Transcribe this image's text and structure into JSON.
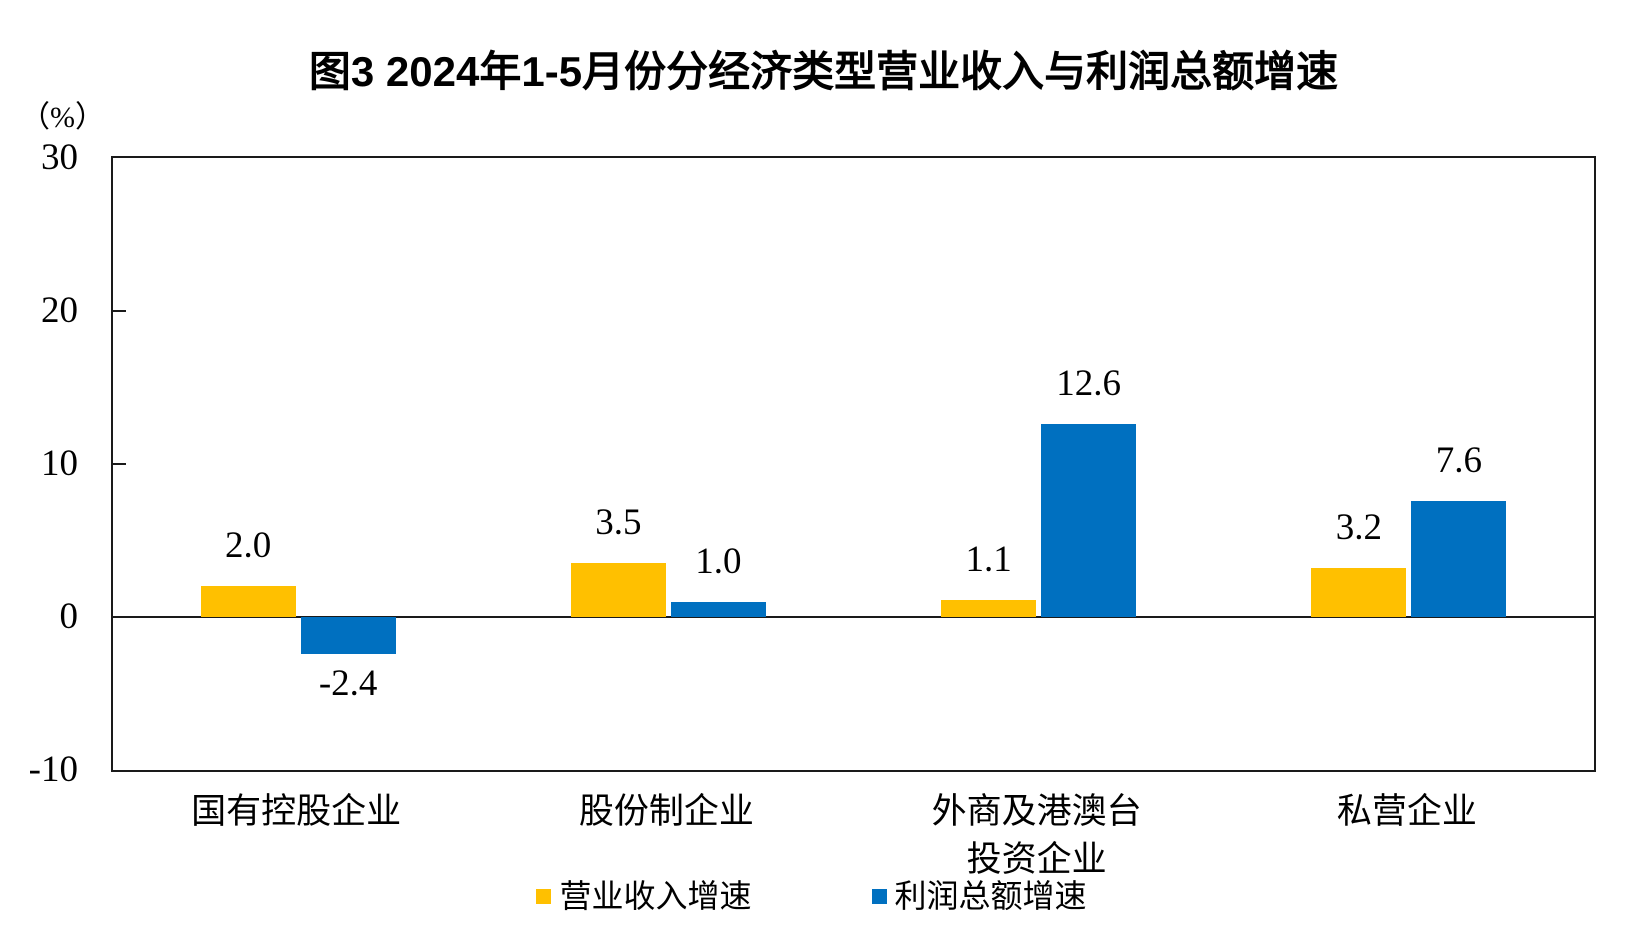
{
  "title": "图3 2024年1-5月份分经济类型营业收入与利润总额增速",
  "y_axis": {
    "unit": "（%）",
    "ticks": [
      30,
      20,
      10,
      0,
      -10
    ],
    "max": 30,
    "min": -10
  },
  "colors": {
    "revenue": "#FFC000",
    "profit": "#0070C0",
    "axis": "#1a1a1a",
    "background": "#ffffff"
  },
  "chart_data": {
    "type": "bar",
    "title": "图3 2024年1-5月份分经济类型营业收入与利润总额增速",
    "ylabel": "（%）",
    "ylim": [
      -10,
      30
    ],
    "grid": false,
    "legend_position": "bottom",
    "categories": [
      "国有控股企业",
      "股份制企业",
      "外商及港澳台\n投资企业",
      "私营企业"
    ],
    "series": [
      {
        "key": "revenue",
        "name": "营业收入增速",
        "color": "#FFC000",
        "values": [
          2.0,
          3.5,
          1.1,
          3.2
        ]
      },
      {
        "key": "profit",
        "name": "利润总额增速",
        "color": "#0070C0",
        "values": [
          -2.4,
          1.0,
          12.6,
          7.6
        ]
      }
    ]
  }
}
